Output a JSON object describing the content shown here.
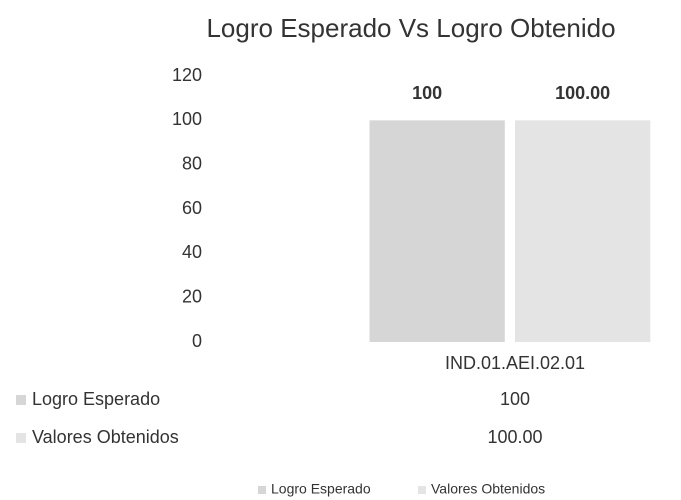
{
  "chart_data": {
    "type": "bar",
    "title": "Logro Esperado Vs Logro Obtenido",
    "categories": [
      "IND.01.AEI.02.01"
    ],
    "series": [
      {
        "name": "Logro Esperado",
        "color": "#d6d6d6",
        "values": [
          100
        ],
        "value_labels": [
          "100"
        ]
      },
      {
        "name": "Valores Obtenidos",
        "color": "#e4e4e4",
        "values": [
          100
        ],
        "value_labels": [
          "100.00"
        ]
      }
    ],
    "ylim": [
      0,
      120
    ],
    "yticks": [
      0,
      20,
      40,
      60,
      80,
      100,
      120
    ],
    "grid": false,
    "legend": "bottom"
  }
}
